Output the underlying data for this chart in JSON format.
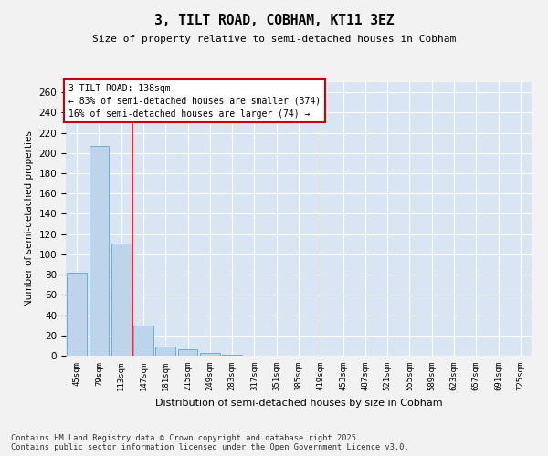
{
  "title1": "3, TILT ROAD, COBHAM, KT11 3EZ",
  "title2": "Size of property relative to semi-detached houses in Cobham",
  "xlabel": "Distribution of semi-detached houses by size in Cobham",
  "ylabel": "Number of semi-detached properties",
  "categories": [
    "45sqm",
    "79sqm",
    "113sqm",
    "147sqm",
    "181sqm",
    "215sqm",
    "249sqm",
    "283sqm",
    "317sqm",
    "351sqm",
    "385sqm",
    "419sqm",
    "453sqm",
    "487sqm",
    "521sqm",
    "555sqm",
    "589sqm",
    "623sqm",
    "657sqm",
    "691sqm",
    "725sqm"
  ],
  "values": [
    82,
    207,
    111,
    30,
    9,
    6,
    3,
    1,
    0,
    0,
    0,
    0,
    0,
    0,
    0,
    0,
    0,
    0,
    0,
    0,
    0
  ],
  "bar_color": "#bed4ea",
  "bar_edge_color": "#6baed6",
  "red_line_x": 2.5,
  "annotation_label": "3 TILT ROAD: 138sqm",
  "annotation_line1": "← 83% of semi-detached houses are smaller (374)",
  "annotation_line2": "16% of semi-detached houses are larger (74) →",
  "annotation_box_facecolor": "#ffffff",
  "annotation_box_edgecolor": "#cc0000",
  "ylim": [
    0,
    270
  ],
  "yticks": [
    0,
    20,
    40,
    60,
    80,
    100,
    120,
    140,
    160,
    180,
    200,
    220,
    240,
    260
  ],
  "background_color": "#d9e5f3",
  "grid_color": "#ffffff",
  "footer1": "Contains HM Land Registry data © Crown copyright and database right 2025.",
  "footer2": "Contains public sector information licensed under the Open Government Licence v3.0.",
  "fig_facecolor": "#f2f2f2"
}
